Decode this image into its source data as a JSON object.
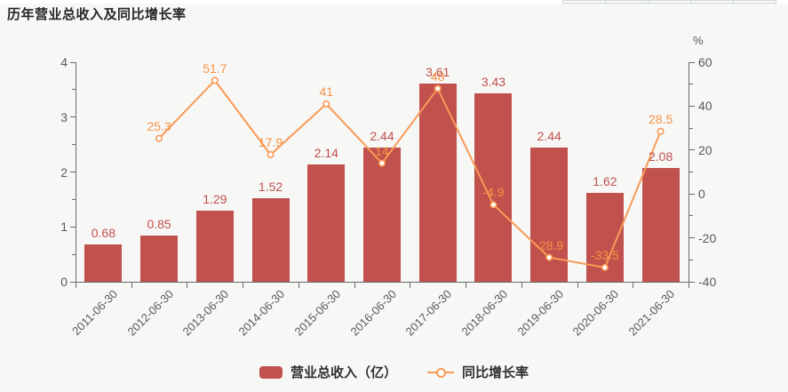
{
  "title": "历年营业总收入及同比增长率",
  "chart_data": {
    "type": "bar+line",
    "categories": [
      "2011-06-30",
      "2012-06-30",
      "2013-06-30",
      "2014-06-30",
      "2015-06-30",
      "2016-06-30",
      "2017-06-30",
      "2018-06-30",
      "2019-06-30",
      "2020-06-30",
      "2021-06-30"
    ],
    "series": [
      {
        "name": "营业总收入（亿）",
        "type": "bar",
        "axis": "left",
        "color": "#c0514d",
        "label_color": "#c0504d",
        "values": [
          0.68,
          0.85,
          1.29,
          1.52,
          2.14,
          2.44,
          3.61,
          3.43,
          2.44,
          1.62,
          2.08
        ],
        "labels": [
          "0.68",
          "0.85",
          "1.29",
          "1.52",
          "2.14",
          "2.44",
          "3.61",
          "3.43",
          "2.44",
          "1.62",
          "2.08"
        ]
      },
      {
        "name": "同比增长率",
        "type": "line",
        "axis": "right",
        "color": "#f99a56",
        "label_color": "#f79445",
        "values": [
          null,
          25.3,
          51.7,
          17.9,
          41,
          14,
          48,
          -4.9,
          -28.9,
          -33.5,
          28.5
        ],
        "labels": [
          null,
          "25.3",
          "51.7",
          "17.9",
          "41",
          "14",
          "48",
          "-4.9",
          "-28.9",
          "-33.5",
          "28.5"
        ]
      }
    ],
    "left_axis": {
      "min": 0,
      "max": 4,
      "tick_step": 1,
      "minor_step": 0.5,
      "ticks": [
        "0",
        "1",
        "2",
        "3",
        "4"
      ]
    },
    "right_axis": {
      "min": -40,
      "max": 60,
      "tick_step": 20,
      "minor_step": 10,
      "ticks": [
        "-40",
        "-20",
        "0",
        "20",
        "40",
        "60"
      ],
      "unit": "%"
    },
    "grid": false,
    "legend_position": "bottom-center"
  },
  "colors": {
    "background": "#f7f7f6",
    "axis": "#6b6b6b",
    "axis_text": "#595959",
    "bar": "#c0514d",
    "line": "#f99a56"
  }
}
